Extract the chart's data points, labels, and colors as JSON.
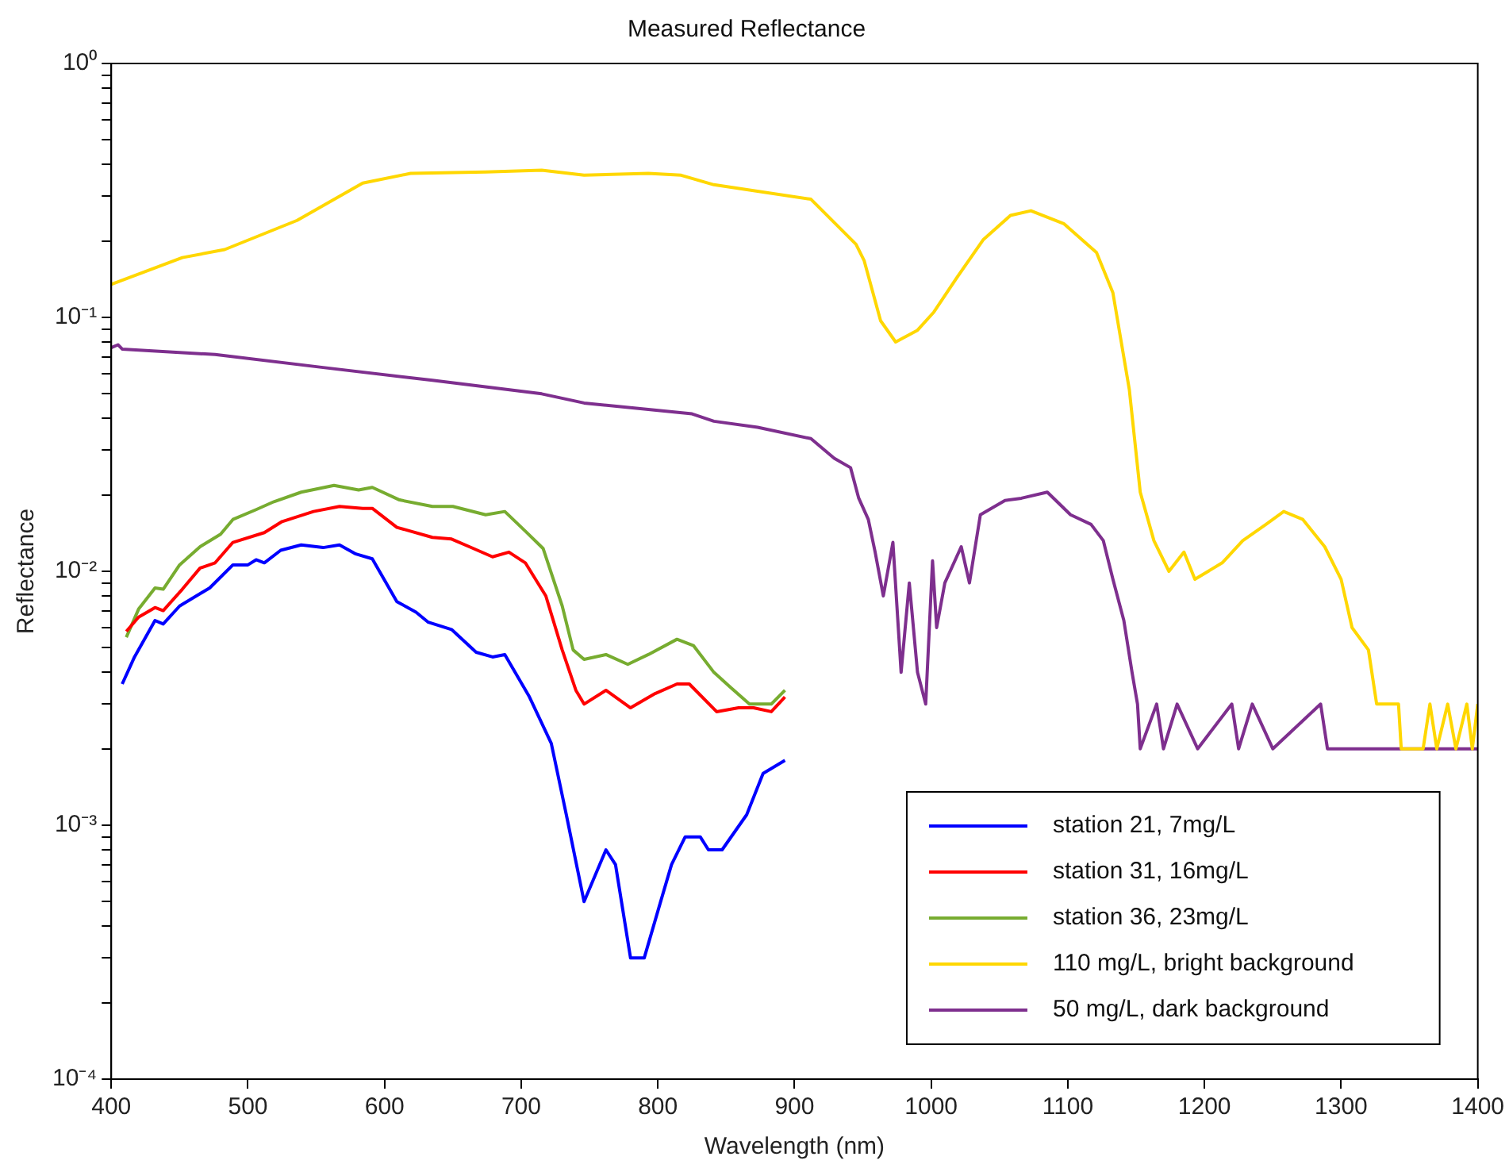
{
  "chart_data": {
    "type": "line",
    "title": "Measured Reflectance",
    "xlabel": "Wavelength (nm)",
    "ylabel": "Reflectance",
    "log": "y",
    "grid": false,
    "legend": "bottom right",
    "line_style": "solid",
    "marker": "none",
    "xlim": [
      400,
      1400
    ],
    "xticks": [
      400,
      500,
      600,
      700,
      800,
      900,
      1000,
      1100,
      1200,
      1300,
      1400
    ],
    "ylim": [
      0.0001,
      1
    ],
    "yticks": [
      {
        "value": 0.0001,
        "label": "10⁻⁴"
      },
      {
        "value": 0.0002,
        "label": null
      },
      {
        "value": 0.0003,
        "label": null
      },
      {
        "value": 0.0004,
        "label": null
      },
      {
        "value": 0.0005,
        "label": null
      },
      {
        "value": 0.0006,
        "label": null
      },
      {
        "value": 0.0007,
        "label": null
      },
      {
        "value": 0.0008,
        "label": null
      },
      {
        "value": 0.0009,
        "label": null
      },
      {
        "value": 0.001,
        "label": "10⁻³"
      },
      {
        "value": 0.002,
        "label": null
      },
      {
        "value": 0.003,
        "label": null
      },
      {
        "value": 0.004,
        "label": null
      },
      {
        "value": 0.005,
        "label": null
      },
      {
        "value": 0.006,
        "label": null
      },
      {
        "value": 0.007,
        "label": null
      },
      {
        "value": 0.008,
        "label": null
      },
      {
        "value": 0.009,
        "label": null
      },
      {
        "value": 0.01,
        "label": "10⁻²"
      },
      {
        "value": 0.02,
        "label": null
      },
      {
        "value": 0.03,
        "label": null
      },
      {
        "value": 0.04,
        "label": null
      },
      {
        "value": 0.05,
        "label": null
      },
      {
        "value": 0.06,
        "label": null
      },
      {
        "value": 0.07,
        "label": null
      },
      {
        "value": 0.08,
        "label": null
      },
      {
        "value": 0.09,
        "label": null
      },
      {
        "value": 0.1,
        "label": "10⁻¹"
      },
      {
        "value": 0.2,
        "label": null
      },
      {
        "value": 0.3,
        "label": null
      },
      {
        "value": 0.4,
        "label": null
      },
      {
        "value": 0.5,
        "label": null
      },
      {
        "value": 0.6,
        "label": null
      },
      {
        "value": 0.7,
        "label": null
      },
      {
        "value": 0.8,
        "label": null
      },
      {
        "value": 0.9,
        "label": null
      },
      {
        "value": 1,
        "label": "10⁰"
      }
    ],
    "series": [
      {
        "name": "station 21, 7mg/L",
        "color": "#0000ff",
        "x": [
          408,
          417,
          432,
          438,
          450,
          472,
          489,
          500,
          506,
          512,
          524,
          539,
          555,
          567,
          579,
          591,
          609,
          623,
          632,
          649,
          667,
          679,
          688,
          706,
          722,
          733,
          746,
          762,
          769,
          780,
          790,
          802,
          810,
          820,
          831,
          837,
          847,
          865,
          877,
          893
        ],
        "values": [
          0.0036,
          0.0046,
          0.0064,
          0.0062,
          0.0073,
          0.0086,
          0.0106,
          0.0106,
          0.0111,
          0.0108,
          0.0121,
          0.0127,
          0.0124,
          0.0127,
          0.0117,
          0.0112,
          0.0076,
          0.0069,
          0.0063,
          0.0059,
          0.0048,
          0.0046,
          0.0047,
          0.0032,
          0.0021,
          0.0011,
          0.0005,
          0.0008,
          0.0007,
          0.0003,
          0.0003,
          0.0005,
          0.0007,
          0.0009,
          0.0009,
          0.0008,
          0.0008,
          0.0011,
          0.0016,
          0.0018
        ]
      },
      {
        "name": "station 31, 16mg/L",
        "color": "#ff0000",
        "x": [
          411,
          420,
          432,
          438,
          452,
          465,
          476,
          489,
          512,
          525,
          548,
          567,
          584,
          591,
          609,
          635,
          649,
          662,
          679,
          691,
          703,
          718,
          730,
          740,
          746,
          762,
          780,
          798,
          814,
          823,
          843,
          859,
          870,
          883,
          893
        ],
        "values": [
          0.0058,
          0.0066,
          0.0072,
          0.007,
          0.0085,
          0.0103,
          0.0108,
          0.013,
          0.0142,
          0.0157,
          0.0172,
          0.018,
          0.0177,
          0.0177,
          0.0149,
          0.0136,
          0.0134,
          0.0125,
          0.0114,
          0.0119,
          0.0108,
          0.008,
          0.0049,
          0.0034,
          0.003,
          0.0034,
          0.0029,
          0.0033,
          0.0036,
          0.0036,
          0.0028,
          0.0029,
          0.0029,
          0.0028,
          0.0032
        ]
      },
      {
        "name": "station 36, 23mg/L",
        "color": "#77ac30",
        "x": [
          411,
          420,
          432,
          438,
          450,
          465,
          480,
          489,
          506,
          519,
          539,
          563,
          581,
          591,
          611,
          635,
          650,
          674,
          688,
          703,
          716,
          730,
          738,
          746,
          762,
          778,
          793,
          814,
          826,
          841,
          853,
          867,
          883,
          893
        ],
        "values": [
          0.0055,
          0.0071,
          0.0086,
          0.0085,
          0.0106,
          0.0125,
          0.014,
          0.016,
          0.0175,
          0.0188,
          0.0205,
          0.0218,
          0.0209,
          0.0214,
          0.0191,
          0.018,
          0.018,
          0.0167,
          0.0172,
          0.0144,
          0.0123,
          0.0073,
          0.0049,
          0.0045,
          0.0047,
          0.0043,
          0.0047,
          0.0054,
          0.0051,
          0.004,
          0.0035,
          0.003,
          0.003,
          0.0034
        ]
      },
      {
        "name": "110 mg/L, bright background",
        "color": "#ffd700",
        "x": [
          400,
          405,
          452,
          483,
          536,
          584,
          619,
          674,
          715,
          746,
          793,
          817,
          841,
          912,
          945,
          951,
          963,
          974,
          990,
          1002,
          1019,
          1038,
          1058,
          1073,
          1097,
          1121,
          1133,
          1145,
          1153,
          1163,
          1174,
          1185,
          1193,
          1213,
          1228,
          1245,
          1258,
          1272,
          1288,
          1300,
          1308,
          1320,
          1326,
          1342,
          1344,
          1360,
          1365,
          1370,
          1378,
          1384,
          1392,
          1396,
          1400
        ],
        "values": [
          0.135,
          0.138,
          0.172,
          0.185,
          0.241,
          0.338,
          0.369,
          0.374,
          0.38,
          0.363,
          0.369,
          0.363,
          0.333,
          0.292,
          0.194,
          0.167,
          0.097,
          0.08,
          0.089,
          0.105,
          0.144,
          0.202,
          0.252,
          0.263,
          0.234,
          0.18,
          0.125,
          0.052,
          0.0205,
          0.0132,
          0.01,
          0.0119,
          0.0093,
          0.0108,
          0.0132,
          0.0153,
          0.0172,
          0.016,
          0.0125,
          0.0093,
          0.006,
          0.0049,
          0.003,
          0.003,
          0.002,
          0.002,
          0.003,
          0.002,
          0.003,
          0.002,
          0.003,
          0.002,
          0.003
        ]
      },
      {
        "name": "50 mg/L, dark background",
        "color": "#7e2f8e",
        "x": [
          400,
          405,
          408,
          476,
          555,
          635,
          715,
          746,
          793,
          825,
          841,
          873,
          912,
          929,
          941,
          947,
          954,
          959,
          965,
          972,
          978,
          984,
          990,
          996,
          1001,
          1004,
          1010,
          1022,
          1028,
          1036,
          1054,
          1066,
          1085,
          1102,
          1117,
          1126,
          1133,
          1141,
          1147,
          1151,
          1153,
          1165,
          1170,
          1180,
          1195,
          1220,
          1225,
          1235,
          1250,
          1285,
          1290,
          1300,
          1320,
          1390,
          1400
        ],
        "values": [
          0.076,
          0.078,
          0.075,
          0.0714,
          0.0635,
          0.0565,
          0.05,
          0.046,
          0.0434,
          0.0417,
          0.039,
          0.0369,
          0.0333,
          0.0279,
          0.0256,
          0.0194,
          0.016,
          0.0119,
          0.008,
          0.013,
          0.004,
          0.009,
          0.004,
          0.003,
          0.011,
          0.006,
          0.009,
          0.0125,
          0.009,
          0.0167,
          0.019,
          0.0194,
          0.0205,
          0.0167,
          0.0153,
          0.0132,
          0.0093,
          0.0064,
          0.004,
          0.003,
          0.002,
          0.003,
          0.002,
          0.003,
          0.002,
          0.003,
          0.002,
          0.003,
          0.002,
          0.003,
          0.002,
          0.002,
          0.002,
          0.002,
          0.002
        ]
      }
    ]
  }
}
